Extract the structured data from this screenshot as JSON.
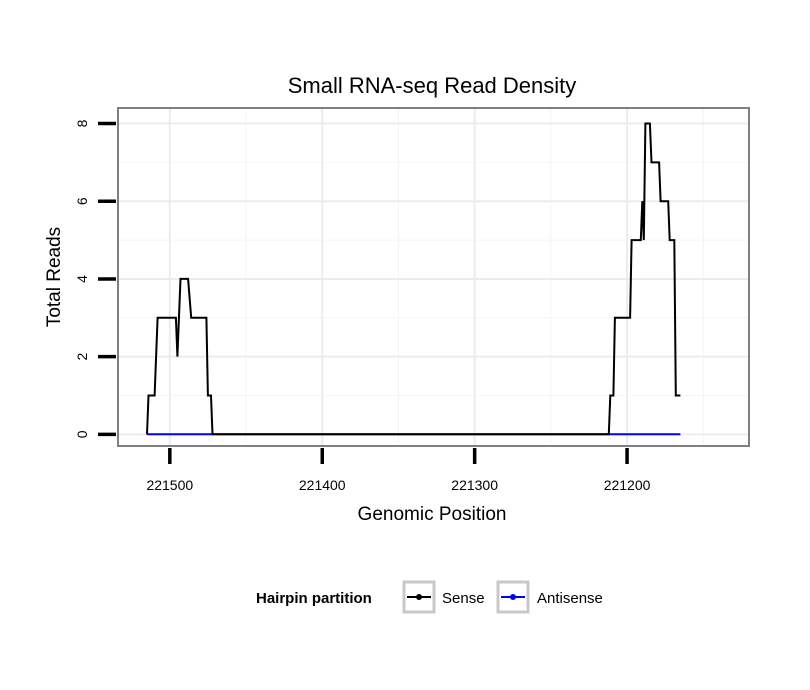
{
  "chart_data": {
    "type": "line",
    "title": "Small RNA-seq Read Density",
    "xlabel": "Genomic Position",
    "ylabel": "Total Reads",
    "x_reversed": true,
    "xlim": [
      221534,
      221120
    ],
    "ylim": [
      -0.3,
      8.4
    ],
    "x_ticks": [
      221500,
      221400,
      221300,
      221200
    ],
    "x_tick_labels": [
      "221500",
      "221400",
      "221300",
      "221200"
    ],
    "y_ticks": [
      0,
      2,
      4,
      6,
      8
    ],
    "y_tick_labels": [
      "0",
      "2",
      "4",
      "6",
      "8"
    ],
    "grid": true,
    "legend_position": "bottom",
    "legend_title": "Hairpin partition",
    "series": [
      {
        "name": "Sense",
        "color": "#000000",
        "points": [
          [
            221515,
            0
          ],
          [
            221514,
            1
          ],
          [
            221510,
            1
          ],
          [
            221508,
            3
          ],
          [
            221496,
            3
          ],
          [
            221495,
            2
          ],
          [
            221493,
            4
          ],
          [
            221488,
            4
          ],
          [
            221486,
            3
          ],
          [
            221476,
            3
          ],
          [
            221475,
            1
          ],
          [
            221473,
            1
          ],
          [
            221472,
            0
          ],
          [
            221212,
            0
          ],
          [
            221211,
            1
          ],
          [
            221209,
            1
          ],
          [
            221208,
            3
          ],
          [
            221198,
            3
          ],
          [
            221197,
            5
          ],
          [
            221191,
            5
          ],
          [
            221190,
            6
          ],
          [
            221189,
            5
          ],
          [
            221188,
            8
          ],
          [
            221185,
            8
          ],
          [
            221184,
            7
          ],
          [
            221179,
            7
          ],
          [
            221178,
            6
          ],
          [
            221173,
            6
          ],
          [
            221172,
            5
          ],
          [
            221169,
            5
          ],
          [
            221168,
            1
          ],
          [
            221165,
            1
          ]
        ]
      },
      {
        "name": "Antisense",
        "color": "#0000ff",
        "points": [
          [
            221515,
            0
          ],
          [
            221165,
            0
          ]
        ]
      }
    ]
  }
}
